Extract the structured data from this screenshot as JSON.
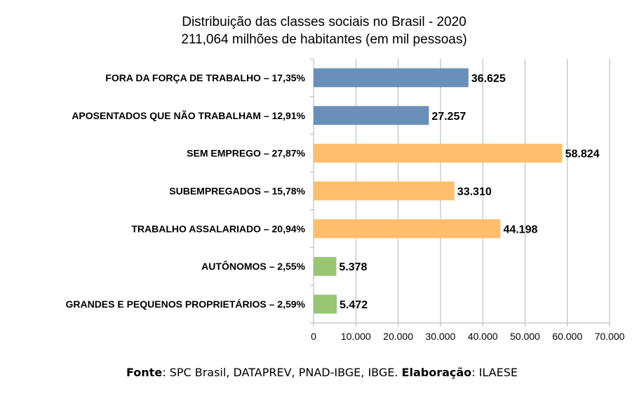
{
  "chart_data": {
    "type": "bar",
    "orientation": "horizontal",
    "title": "Distribuição das classes sociais no Brasil - 2020",
    "subtitle": "211,064 milhões de habitantes (em mil pessoas)",
    "categories": [
      "FORA DA FORÇA DE TRABALHO – 17,35%",
      "APOSENTADOS QUE NÃO TRABALHAM – 12,91%",
      "SEM EMPREGO – 27,87%",
      "SUBEMPREGADOS – 15,78%",
      "TRABALHO ASSALARIADO – 20,94%",
      "AUTÔNOMOS – 2,55%",
      "GRANDES E PEQUENOS PROPRIETÁRIOS – 2,59%"
    ],
    "values": [
      36625,
      27257,
      58824,
      33310,
      44198,
      5378,
      5472
    ],
    "value_labels": [
      "36.625",
      "27.257",
      "58.824",
      "33.310",
      "44.198",
      "5.378",
      "5.472"
    ],
    "bar_colors": [
      "#6990b8",
      "#6990b8",
      "#ffbf6e",
      "#ffbf6e",
      "#ffbf6e",
      "#99c675",
      "#99c675"
    ],
    "xlim": [
      0,
      70000
    ],
    "xticks": [
      0,
      10000,
      20000,
      30000,
      40000,
      50000,
      60000,
      70000
    ],
    "xtick_labels": [
      "0",
      "10.000",
      "20.000",
      "30.000",
      "40.000",
      "50.000",
      "60.000",
      "70.000"
    ],
    "grid": true,
    "grid_color": "#b3b3b3",
    "legend": "none"
  },
  "source": {
    "fonte_label": "Fonte",
    "fonte_text": ": SPC Brasil, DATAPREV, PNAD-IBGE, IBGE. ",
    "elaboracao_label": "Elaboração",
    "elaboracao_text": ": ILAESE"
  }
}
